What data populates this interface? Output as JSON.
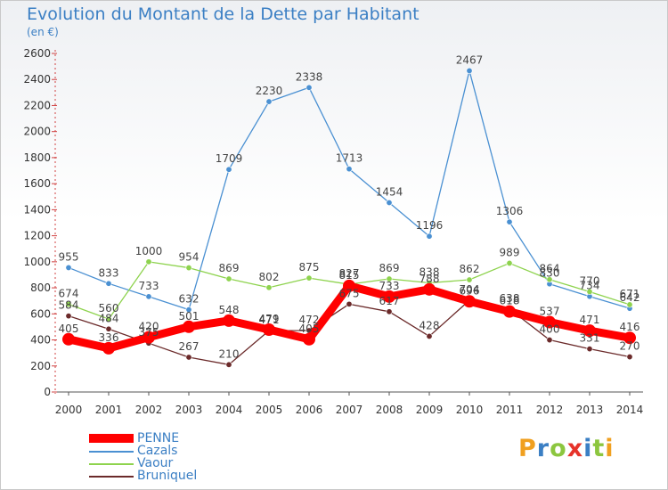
{
  "header": {
    "title": "Evolution du Montant de la Dette par Habitant",
    "subtitle": "(en €)"
  },
  "logo": {
    "text": "Proxiti",
    "colors": [
      "#f0a020",
      "#3b7fc4",
      "#8cc63f",
      "#e6332a",
      "#3b7fc4",
      "#8cc63f",
      "#f0a020"
    ]
  },
  "chart_data": {
    "type": "line",
    "title": "Evolution du Montant de la Dette par Habitant",
    "subtitle": "(en €)",
    "xlabel": "",
    "ylabel": "",
    "ylim": [
      0,
      2600
    ],
    "yticks": [
      0,
      200,
      400,
      600,
      800,
      1000,
      1200,
      1400,
      1600,
      1800,
      2000,
      2200,
      2400,
      2600
    ],
    "grid": false,
    "legend_position": "bottom-left",
    "categories": [
      "2000",
      "2001",
      "2002",
      "2003",
      "2004",
      "2005",
      "2006",
      "2007",
      "2008",
      "2009",
      "2010",
      "2011",
      "2012",
      "2013",
      "2014"
    ],
    "series": [
      {
        "name": "Cazals",
        "color": "#4a90d2",
        "values": [
          955,
          833,
          733,
          632,
          1709,
          2230,
          2338,
          1713,
          1454,
          1196,
          2467,
          1306,
          830,
          734,
          642
        ]
      },
      {
        "name": "Vaour",
        "color": "#8ed34e",
        "values": [
          674,
          560,
          1000,
          954,
          869,
          802,
          875,
          827,
          869,
          838,
          862,
          989,
          864,
          770,
          671
        ]
      },
      {
        "name": "Bruniquel",
        "color": "#6b2a2a",
        "values": [
          584,
          484,
          375,
          267,
          210,
          471,
          472,
          675,
          617,
          428,
          704,
          638,
          400,
          331,
          270
        ]
      },
      {
        "name": "PENNE",
        "color": "#ff0000",
        "values": [
          405,
          336,
          420,
          501,
          548,
          479,
          405,
          815,
          733,
          788,
          696,
          618,
          537,
          471,
          416
        ]
      }
    ]
  }
}
